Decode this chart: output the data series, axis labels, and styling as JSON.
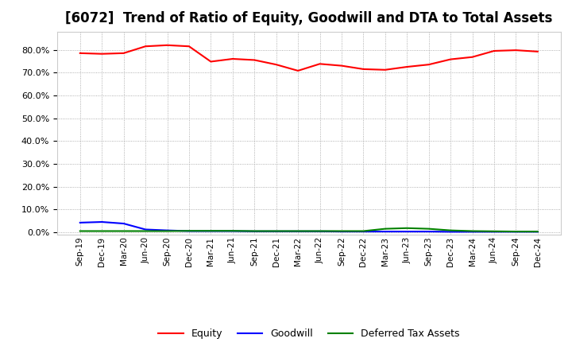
{
  "title": "[6072]  Trend of Ratio of Equity, Goodwill and DTA to Total Assets",
  "x_labels": [
    "Sep-19",
    "Dec-19",
    "Mar-20",
    "Jun-20",
    "Sep-20",
    "Dec-20",
    "Mar-21",
    "Jun-21",
    "Sep-21",
    "Dec-21",
    "Mar-22",
    "Jun-22",
    "Sep-22",
    "Dec-22",
    "Mar-23",
    "Jun-23",
    "Sep-23",
    "Dec-23",
    "Mar-24",
    "Jun-24",
    "Sep-24",
    "Dec-24"
  ],
  "equity": [
    78.5,
    78.2,
    78.5,
    81.5,
    82.0,
    81.5,
    74.8,
    76.0,
    75.5,
    73.5,
    70.8,
    73.8,
    73.0,
    71.5,
    71.2,
    72.5,
    73.5,
    75.8,
    76.8,
    79.5,
    79.8,
    79.2
  ],
  "goodwill": [
    4.2,
    4.5,
    3.8,
    1.2,
    0.8,
    0.5,
    0.5,
    0.5,
    0.4,
    0.4,
    0.4,
    0.4,
    0.3,
    0.3,
    0.3,
    0.3,
    0.3,
    0.2,
    0.2,
    0.2,
    0.2,
    0.2
  ],
  "dta": [
    0.5,
    0.5,
    0.5,
    0.5,
    0.5,
    0.6,
    0.6,
    0.6,
    0.5,
    0.5,
    0.5,
    0.5,
    0.5,
    0.5,
    1.5,
    1.8,
    1.5,
    0.8,
    0.5,
    0.4,
    0.3,
    0.3
  ],
  "equity_color": "#FF0000",
  "goodwill_color": "#0000FF",
  "dta_color": "#008000",
  "ylim_min": -1,
  "ylim_max": 88,
  "yticks": [
    0,
    10,
    20,
    30,
    40,
    50,
    60,
    70,
    80
  ],
  "background_color": "#FFFFFF",
  "grid_color": "#AAAAAA",
  "title_fontsize": 12,
  "legend_labels": [
    "Equity",
    "Goodwill",
    "Deferred Tax Assets"
  ]
}
